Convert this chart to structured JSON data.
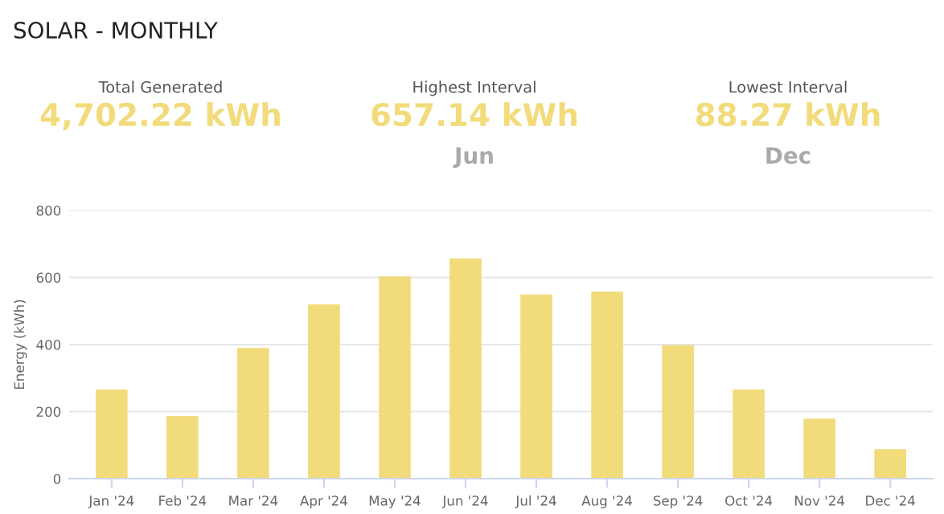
{
  "chart_data": {
    "type": "bar",
    "title": "SOLAR - MONTHLY",
    "annotations": [
      "Total Generated",
      "4,702.22 kWh",
      "Highest Interval",
      "657.14 kWh",
      "Jun",
      "Lowest Interval",
      "88.27 kWh",
      "Dec"
    ],
    "ylabel": "Energy (kWh)",
    "categories": [
      "Jan '24",
      "Feb '24",
      "Mar '24",
      "Apr '24",
      "May '24",
      "Jun '24",
      "Jul '24",
      "Aug '24",
      "Sep '24",
      "Oct '24",
      "Nov '24",
      "Dec '24"
    ],
    "values": [
      266,
      187,
      390,
      520,
      603,
      657.14,
      549,
      558,
      398,
      266,
      179,
      88.27
    ],
    "color": "#f2db7b",
    "ylim": [
      0,
      800
    ],
    "yticks": [
      0,
      200,
      400,
      600,
      800
    ],
    "grid": "y",
    "legend": false
  }
}
